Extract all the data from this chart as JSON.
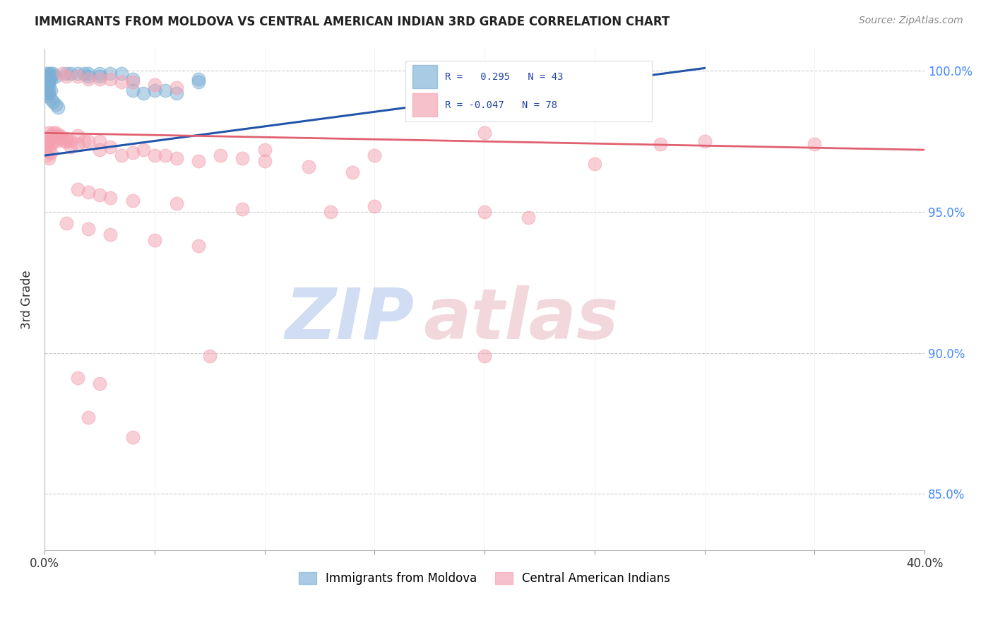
{
  "title": "IMMIGRANTS FROM MOLDOVA VS CENTRAL AMERICAN INDIAN 3RD GRADE CORRELATION CHART",
  "source": "Source: ZipAtlas.com",
  "ylabel": "3rd Grade",
  "ytick_labels": [
    "85.0%",
    "90.0%",
    "95.0%",
    "100.0%"
  ],
  "ytick_values": [
    0.85,
    0.9,
    0.95,
    1.0
  ],
  "blue_color": "#7BAFD4",
  "pink_color": "#F4A0B0",
  "blue_line_color": "#2255AA",
  "pink_line_color": "#E06070",
  "blue_scatter": [
    [
      0.001,
      0.999
    ],
    [
      0.002,
      0.999
    ],
    [
      0.003,
      0.999
    ],
    [
      0.004,
      0.999
    ],
    [
      0.001,
      0.998
    ],
    [
      0.002,
      0.998
    ],
    [
      0.003,
      0.998
    ],
    [
      0.005,
      0.998
    ],
    [
      0.001,
      0.997
    ],
    [
      0.002,
      0.997
    ],
    [
      0.003,
      0.997
    ],
    [
      0.001,
      0.996
    ],
    [
      0.002,
      0.996
    ],
    [
      0.001,
      0.995
    ],
    [
      0.002,
      0.995
    ],
    [
      0.001,
      0.994
    ],
    [
      0.002,
      0.993
    ],
    [
      0.003,
      0.993
    ],
    [
      0.001,
      0.992
    ],
    [
      0.002,
      0.992
    ],
    [
      0.001,
      0.991
    ],
    [
      0.003,
      0.99
    ],
    [
      0.004,
      0.989
    ],
    [
      0.005,
      0.988
    ],
    [
      0.006,
      0.987
    ],
    [
      0.01,
      0.999
    ],
    [
      0.012,
      0.999
    ],
    [
      0.015,
      0.999
    ],
    [
      0.018,
      0.999
    ],
    [
      0.02,
      0.999
    ],
    [
      0.025,
      0.999
    ],
    [
      0.03,
      0.999
    ],
    [
      0.035,
      0.999
    ],
    [
      0.04,
      0.997
    ],
    [
      0.05,
      0.993
    ],
    [
      0.055,
      0.993
    ],
    [
      0.06,
      0.992
    ],
    [
      0.07,
      0.996
    ],
    [
      0.04,
      0.993
    ],
    [
      0.045,
      0.992
    ],
    [
      0.02,
      0.998
    ],
    [
      0.025,
      0.998
    ],
    [
      0.07,
      0.997
    ],
    [
      0.18,
      0.999
    ]
  ],
  "pink_scatter": [
    [
      0.001,
      0.975
    ],
    [
      0.001,
      0.973
    ],
    [
      0.001,
      0.97
    ],
    [
      0.002,
      0.978
    ],
    [
      0.002,
      0.975
    ],
    [
      0.002,
      0.972
    ],
    [
      0.002,
      0.969
    ],
    [
      0.003,
      0.977
    ],
    [
      0.003,
      0.974
    ],
    [
      0.003,
      0.971
    ],
    [
      0.004,
      0.978
    ],
    [
      0.004,
      0.975
    ],
    [
      0.005,
      0.978
    ],
    [
      0.005,
      0.975
    ],
    [
      0.006,
      0.977
    ],
    [
      0.007,
      0.977
    ],
    [
      0.008,
      0.976
    ],
    [
      0.009,
      0.975
    ],
    [
      0.01,
      0.976
    ],
    [
      0.012,
      0.975
    ],
    [
      0.015,
      0.977
    ],
    [
      0.015,
      0.974
    ],
    [
      0.018,
      0.975
    ],
    [
      0.02,
      0.975
    ],
    [
      0.025,
      0.975
    ],
    [
      0.025,
      0.972
    ],
    [
      0.03,
      0.973
    ],
    [
      0.035,
      0.97
    ],
    [
      0.04,
      0.971
    ],
    [
      0.045,
      0.972
    ],
    [
      0.05,
      0.97
    ],
    [
      0.055,
      0.97
    ],
    [
      0.06,
      0.969
    ],
    [
      0.07,
      0.968
    ],
    [
      0.08,
      0.97
    ],
    [
      0.09,
      0.969
    ],
    [
      0.1,
      0.968
    ],
    [
      0.12,
      0.966
    ],
    [
      0.14,
      0.964
    ],
    [
      0.01,
      0.975
    ],
    [
      0.012,
      0.973
    ],
    [
      0.015,
      0.958
    ],
    [
      0.02,
      0.957
    ],
    [
      0.025,
      0.956
    ],
    [
      0.03,
      0.955
    ],
    [
      0.04,
      0.954
    ],
    [
      0.06,
      0.953
    ],
    [
      0.09,
      0.951
    ],
    [
      0.13,
      0.95
    ],
    [
      0.15,
      0.952
    ],
    [
      0.2,
      0.95
    ],
    [
      0.22,
      0.948
    ],
    [
      0.01,
      0.946
    ],
    [
      0.02,
      0.944
    ],
    [
      0.03,
      0.942
    ],
    [
      0.05,
      0.94
    ],
    [
      0.07,
      0.938
    ],
    [
      0.008,
      0.999
    ],
    [
      0.01,
      0.998
    ],
    [
      0.015,
      0.998
    ],
    [
      0.02,
      0.997
    ],
    [
      0.025,
      0.997
    ],
    [
      0.03,
      0.997
    ],
    [
      0.035,
      0.996
    ],
    [
      0.04,
      0.996
    ],
    [
      0.05,
      0.995
    ],
    [
      0.06,
      0.994
    ],
    [
      0.2,
      0.978
    ],
    [
      0.3,
      0.975
    ],
    [
      0.35,
      0.974
    ],
    [
      0.2,
      0.899
    ],
    [
      0.015,
      0.891
    ],
    [
      0.025,
      0.889
    ],
    [
      0.02,
      0.877
    ],
    [
      0.04,
      0.87
    ],
    [
      0.075,
      0.899
    ],
    [
      0.15,
      0.97
    ],
    [
      0.1,
      0.972
    ],
    [
      0.25,
      0.967
    ],
    [
      0.28,
      0.974
    ]
  ],
  "blue_trendline_x": [
    0.0,
    0.3
  ],
  "blue_trendline_y": [
    0.97,
    1.001
  ],
  "pink_trendline_x": [
    0.0,
    0.4
  ],
  "pink_trendline_y": [
    0.978,
    0.972
  ],
  "xlim": [
    0.0,
    0.4
  ],
  "ylim": [
    0.83,
    1.008
  ],
  "watermark_zip": "ZIP",
  "watermark_atlas": "atlas",
  "background_color": "#FFFFFF",
  "grid_color": "#CCCCCC",
  "legend_blue_label": "Immigrants from Moldova",
  "legend_pink_label": "Central American Indians"
}
